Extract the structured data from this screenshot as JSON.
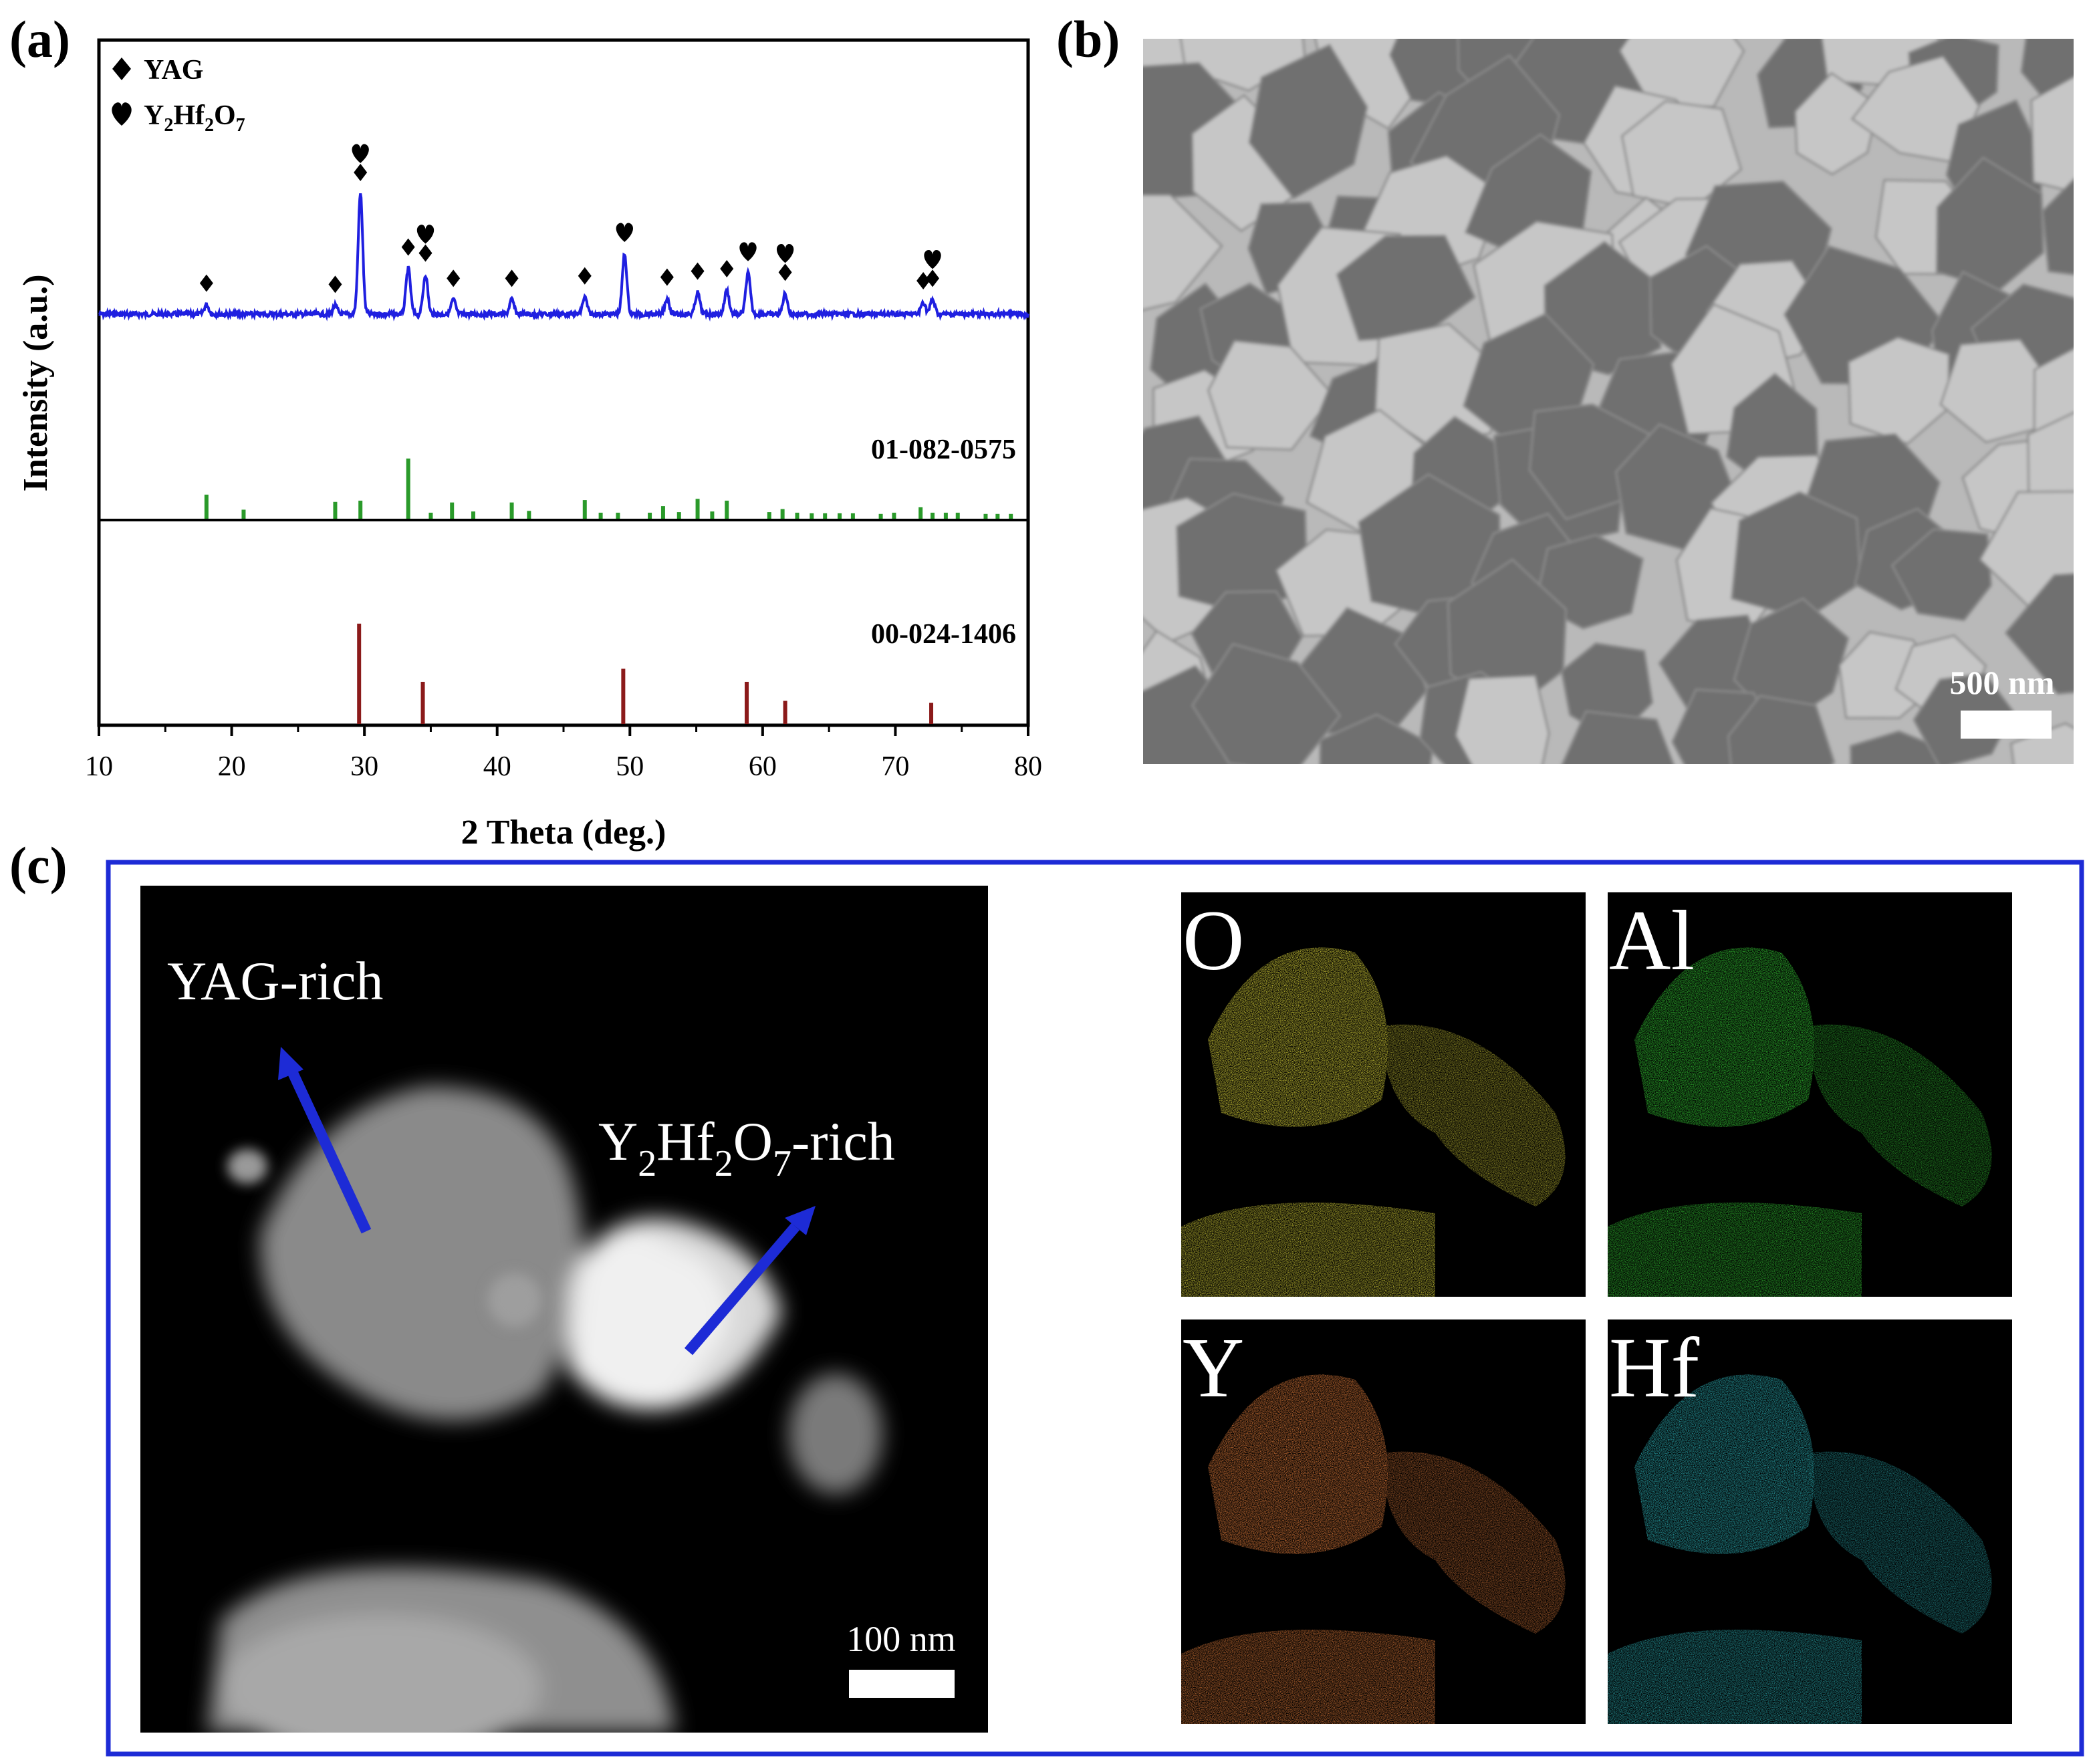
{
  "figure": {
    "panel_labels": {
      "a": "(a)",
      "b": "(b)",
      "c": "(c)"
    },
    "sem": {
      "scale_bar": "500 nm"
    },
    "stem": {
      "label_yag": "YAG-rich",
      "label_hfo": {
        "main": "Y",
        "sub1": "2",
        "mid": "Hf",
        "sub2": "2",
        "o": "O",
        "sub3": "7",
        "tail": "-rich"
      },
      "scale_bar": "100 nm"
    },
    "eds_maps": [
      {
        "element": "O",
        "color": "#d8d23a"
      },
      {
        "element": "Al",
        "color": "#33c233"
      },
      {
        "element": "Y",
        "color": "#dd7a3a"
      },
      {
        "element": "Hf",
        "color": "#33c7cf"
      }
    ]
  },
  "chart_data": {
    "type": "line",
    "xlabel": "2 Theta (deg.)",
    "ylabel": "Intensity (a.u.)",
    "xlim": [
      10,
      80
    ],
    "xticks": [
      10,
      20,
      30,
      40,
      50,
      60,
      70,
      80
    ],
    "legend": {
      "placement": "top-left",
      "entries": [
        {
          "symbol": "diamond",
          "text": "YAG"
        },
        {
          "symbol": "heart",
          "text": "Y",
          "formula": {
            "a": "Y",
            "s1": "2",
            "b": "Hf",
            "s2": "2",
            "c": "O",
            "s3": "7"
          }
        }
      ]
    },
    "measured_pattern": {
      "color": "#1f1fe0",
      "peaks": [
        {
          "x": 18.1,
          "height": 0.08,
          "marker": "diamond"
        },
        {
          "x": 27.8,
          "height": 0.07,
          "marker": "diamond"
        },
        {
          "x": 29.7,
          "height": 1.0,
          "marker": "heart+diamond"
        },
        {
          "x": 33.3,
          "height": 0.38,
          "marker": "diamond"
        },
        {
          "x": 34.6,
          "height": 0.33,
          "marker": "heart+diamond"
        },
        {
          "x": 36.7,
          "height": 0.12,
          "marker": "diamond"
        },
        {
          "x": 41.1,
          "height": 0.12,
          "marker": "diamond"
        },
        {
          "x": 46.6,
          "height": 0.14,
          "marker": "diamond"
        },
        {
          "x": 49.6,
          "height": 0.5,
          "marker": "heart"
        },
        {
          "x": 52.8,
          "height": 0.13,
          "marker": "diamond"
        },
        {
          "x": 55.1,
          "height": 0.18,
          "marker": "diamond"
        },
        {
          "x": 57.3,
          "height": 0.2,
          "marker": "diamond"
        },
        {
          "x": 58.9,
          "height": 0.34,
          "marker": "heart"
        },
        {
          "x": 61.7,
          "height": 0.17,
          "marker": "heart+diamond"
        },
        {
          "x": 72.1,
          "height": 0.1,
          "marker": "diamond"
        },
        {
          "x": 72.8,
          "height": 0.12,
          "marker": "heart+diamond"
        }
      ]
    },
    "reference_patterns": [
      {
        "name": "01-082-0575",
        "color": "#2a9a2a",
        "sticks": [
          [
            18.1,
            0.4
          ],
          [
            20.9,
            0.15
          ],
          [
            27.8,
            0.28
          ],
          [
            29.7,
            0.3
          ],
          [
            33.3,
            1.0
          ],
          [
            35.0,
            0.1
          ],
          [
            36.6,
            0.27
          ],
          [
            38.2,
            0.12
          ],
          [
            41.1,
            0.27
          ],
          [
            42.4,
            0.13
          ],
          [
            46.6,
            0.31
          ],
          [
            47.8,
            0.1
          ],
          [
            49.1,
            0.1
          ],
          [
            51.5,
            0.1
          ],
          [
            52.5,
            0.21
          ],
          [
            53.7,
            0.11
          ],
          [
            55.1,
            0.33
          ],
          [
            56.2,
            0.12
          ],
          [
            57.3,
            0.3
          ],
          [
            60.5,
            0.11
          ],
          [
            61.5,
            0.16
          ],
          [
            62.6,
            0.1
          ],
          [
            63.7,
            0.09
          ],
          [
            64.7,
            0.09
          ],
          [
            65.8,
            0.09
          ],
          [
            66.8,
            0.09
          ],
          [
            68.9,
            0.08
          ],
          [
            69.9,
            0.1
          ],
          [
            71.9,
            0.19
          ],
          [
            72.8,
            0.1
          ],
          [
            73.8,
            0.1
          ],
          [
            74.7,
            0.1
          ],
          [
            76.8,
            0.08
          ],
          [
            77.7,
            0.08
          ],
          [
            78.7,
            0.08
          ]
        ]
      },
      {
        "name": "00-024-1406",
        "color": "#8b1a1a",
        "sticks": [
          [
            29.6,
            1.0
          ],
          [
            34.4,
            0.42
          ],
          [
            49.5,
            0.55
          ],
          [
            58.8,
            0.42
          ],
          [
            61.7,
            0.23
          ],
          [
            72.7,
            0.21
          ]
        ]
      }
    ]
  }
}
